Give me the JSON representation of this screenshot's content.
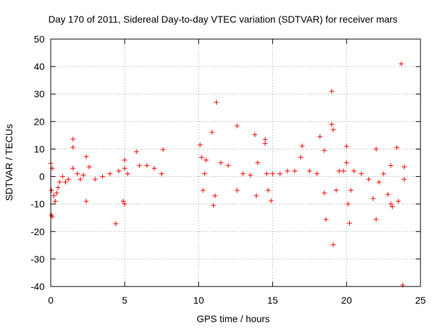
{
  "chart_data": {
    "type": "scatter",
    "title": "Day 170 of 2011, Sidereal Day-to-day VTEC variation (SDTVAR) for receiver mars",
    "xlabel": "GPS time / hours",
    "ylabel": "SDTVAR / TECUs",
    "xlim": [
      0,
      25
    ],
    "ylim": [
      -40,
      50
    ],
    "xticks": [
      0,
      5,
      10,
      15,
      20,
      25
    ],
    "xtick_labels": [
      "0",
      "5",
      "10",
      "15",
      "20",
      "25"
    ],
    "yticks": [
      -40,
      -30,
      -20,
      -10,
      0,
      10,
      20,
      30,
      40,
      50
    ],
    "ytick_labels": [
      "-40",
      "-30",
      "-20",
      "-10",
      "0",
      "10",
      "20",
      "30",
      "40",
      "50"
    ],
    "grid": true,
    "marker": "+",
    "series": [
      {
        "name": "SDTVAR",
        "color": "#ff0000",
        "points": [
          [
            0.0,
            4.8
          ],
          [
            0.05,
            -14.0
          ],
          [
            0.1,
            -14.6
          ],
          [
            0.05,
            -5.0
          ],
          [
            0.1,
            3.0
          ],
          [
            0.2,
            -7.0
          ],
          [
            0.3,
            -9.0
          ],
          [
            0.4,
            -6.0
          ],
          [
            0.5,
            -4.0
          ],
          [
            0.6,
            -2.0
          ],
          [
            0.8,
            0.0
          ],
          [
            1.0,
            -2.0
          ],
          [
            1.2,
            -1.0
          ],
          [
            1.5,
            13.6
          ],
          [
            1.5,
            10.6
          ],
          [
            1.5,
            3.0
          ],
          [
            1.8,
            1.0
          ],
          [
            2.0,
            -1.0
          ],
          [
            2.2,
            0.5
          ],
          [
            2.4,
            7.2
          ],
          [
            2.4,
            -9.0
          ],
          [
            2.6,
            3.5
          ],
          [
            3.0,
            -1.0
          ],
          [
            3.5,
            0.0
          ],
          [
            4.0,
            1.0
          ],
          [
            4.4,
            -17.2
          ],
          [
            4.6,
            2.0
          ],
          [
            4.9,
            -9.0
          ],
          [
            5.0,
            -10.0
          ],
          [
            5.0,
            6.0
          ],
          [
            5.0,
            3.0
          ],
          [
            5.2,
            1.0
          ],
          [
            5.8,
            9.0
          ],
          [
            6.0,
            4.0
          ],
          [
            6.5,
            4.0
          ],
          [
            7.0,
            3.0
          ],
          [
            7.5,
            1.0
          ],
          [
            7.6,
            9.8
          ],
          [
            10.1,
            11.5
          ],
          [
            10.2,
            7.0
          ],
          [
            10.3,
            -5.0
          ],
          [
            10.4,
            1.0
          ],
          [
            10.5,
            6.0
          ],
          [
            10.9,
            16.1
          ],
          [
            11.0,
            -10.5
          ],
          [
            11.1,
            -7.0
          ],
          [
            11.2,
            27.0
          ],
          [
            11.5,
            5.0
          ],
          [
            12.0,
            4.0
          ],
          [
            12.6,
            18.4
          ],
          [
            12.6,
            -5.0
          ],
          [
            13.0,
            1.0
          ],
          [
            13.5,
            0.5
          ],
          [
            13.8,
            15.2
          ],
          [
            13.9,
            -7.0
          ],
          [
            14.0,
            5.0
          ],
          [
            14.5,
            13.5
          ],
          [
            14.5,
            12.0
          ],
          [
            14.6,
            1.0
          ],
          [
            14.7,
            -5.0
          ],
          [
            14.9,
            -8.8
          ],
          [
            15.0,
            1.0
          ],
          [
            15.5,
            1.0
          ],
          [
            16.0,
            2.0
          ],
          [
            16.5,
            2.0
          ],
          [
            16.9,
            7.0
          ],
          [
            17.0,
            11.1
          ],
          [
            17.5,
            2.0
          ],
          [
            18.0,
            1.0
          ],
          [
            18.2,
            14.5
          ],
          [
            18.5,
            9.5
          ],
          [
            18.5,
            -6.0
          ],
          [
            18.6,
            -15.6
          ],
          [
            19.0,
            31.0
          ],
          [
            19.0,
            19.0
          ],
          [
            19.1,
            17.0
          ],
          [
            19.1,
            -24.8
          ],
          [
            19.3,
            -5.0
          ],
          [
            19.5,
            2.0
          ],
          [
            19.8,
            2.0
          ],
          [
            20.0,
            11.0
          ],
          [
            20.0,
            5.0
          ],
          [
            20.1,
            -10.0
          ],
          [
            20.2,
            -17.0
          ],
          [
            20.3,
            -5.0
          ],
          [
            20.5,
            2.0
          ],
          [
            21.0,
            1.0
          ],
          [
            21.5,
            -1.0
          ],
          [
            21.8,
            -8.0
          ],
          [
            22.0,
            10.0
          ],
          [
            22.0,
            -15.6
          ],
          [
            22.2,
            -2.0
          ],
          [
            22.5,
            1.0
          ],
          [
            22.8,
            -6.5
          ],
          [
            23.0,
            4.0
          ],
          [
            23.0,
            -10.0
          ],
          [
            23.1,
            -11.0
          ],
          [
            23.4,
            10.5
          ],
          [
            23.5,
            -9.0
          ],
          [
            23.7,
            41.0
          ],
          [
            23.8,
            -39.5
          ],
          [
            23.9,
            3.5
          ],
          [
            23.9,
            -1.0
          ]
        ]
      }
    ]
  }
}
